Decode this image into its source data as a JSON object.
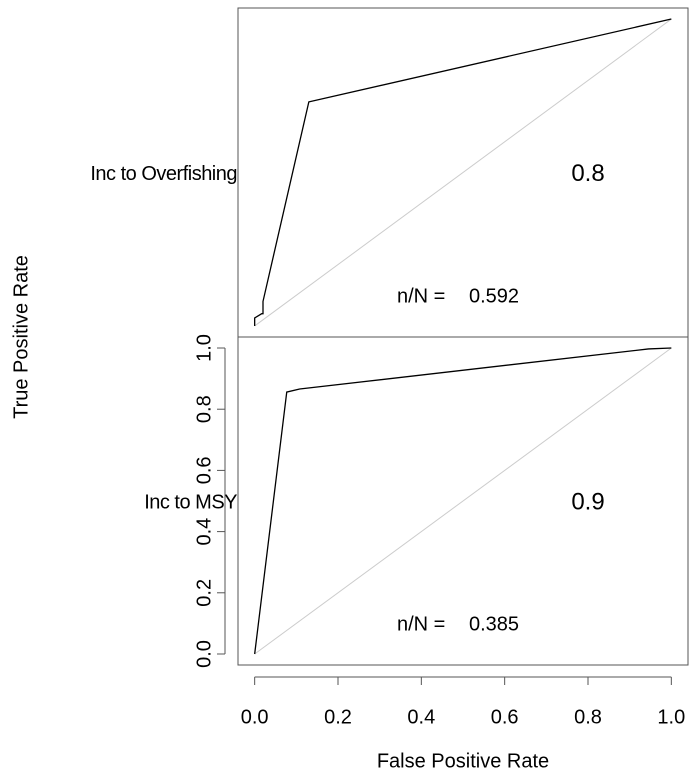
{
  "chart_data": [
    {
      "type": "line",
      "label": "Inc to Overfishing",
      "color": "#000000",
      "x": [
        0,
        0,
        0.017,
        0.02,
        0.02,
        0.13,
        1.0
      ],
      "values": [
        0,
        0.026,
        0.04,
        0.04,
        0.08,
        0.73,
        1.0
      ],
      "auc": 0.8,
      "nn_label": "n/N = ",
      "nn": 0.592,
      "xlim": [
        -0.04,
        1.04
      ],
      "ylim": [
        -0.036,
        1.036
      ]
    },
    {
      "type": "line",
      "label": "Inc to MSY",
      "color": "#000000",
      "x": [
        0,
        0.077,
        0.108,
        0.945,
        1.0
      ],
      "values": [
        0,
        0.856,
        0.866,
        0.997,
        1.0
      ],
      "auc": 0.9,
      "nn_label": "n/N = ",
      "nn": 0.385,
      "xlim": [
        -0.04,
        1.04
      ],
      "ylim": [
        -0.036,
        1.036
      ],
      "xticks": [
        {
          "value": 0,
          "label": "0.0"
        },
        0.2,
        0.4,
        0.6,
        0.8,
        {
          "value": 1,
          "label": "1.0"
        }
      ],
      "yticks": [
        {
          "value": 0,
          "label": "0.0"
        },
        0.2,
        0.4,
        0.6,
        0.8,
        {
          "value": 1,
          "label": "1.0"
        }
      ],
      "xlabel": "False Positive Rate",
      "ylabel": "True Positive Rate"
    }
  ]
}
